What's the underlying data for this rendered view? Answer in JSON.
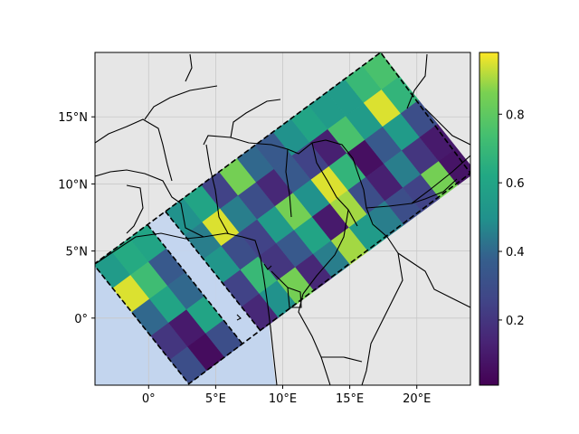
{
  "map": {
    "lon_range": [
      -4,
      24
    ],
    "lat_range": [
      -5,
      19.8
    ],
    "background_color": "#e6e6e6",
    "ocean_color": "#c3d5ee",
    "grid": true,
    "x_ticks": [
      {
        "lon": 0,
        "label": "0°"
      },
      {
        "lon": 5,
        "label": "5°E"
      },
      {
        "lon": 10,
        "label": "10°E"
      },
      {
        "lon": 15,
        "label": "15°E"
      },
      {
        "lon": 20,
        "label": "20°E"
      }
    ],
    "y_ticks": [
      {
        "lat": 0,
        "label": "0°"
      },
      {
        "lat": 5,
        "label": "5°N"
      },
      {
        "lat": 10,
        "label": "10°N"
      },
      {
        "lat": 15,
        "label": "15°N"
      }
    ]
  },
  "swath": {
    "corner_lon_lat": [
      [
        -4.1,
        4.0
      ],
      [
        17.3,
        19.8
      ],
      [
        24.0,
        10.8
      ],
      [
        3.0,
        -4.9
      ]
    ],
    "rows": 5,
    "cols": 16,
    "values": [
      [
        0.55,
        0.63,
        0.6,
        0.34,
        0.5,
        0.6,
        0.25,
        0.85,
        0.4,
        0.35,
        0.5,
        0.6,
        0.55,
        0.55,
        0.7,
        0.75
      ],
      [
        0.95,
        0.72,
        0.35,
        0.2,
        0.45,
        0.95,
        0.45,
        0.3,
        0.15,
        0.35,
        0.25,
        0.12,
        0.75,
        0.55,
        0.95,
        0.68
      ],
      [
        0.4,
        0.6,
        0.4,
        0.2,
        0.52,
        0.3,
        0.25,
        0.55,
        0.85,
        0.5,
        0.95,
        0.68,
        0.06,
        0.35,
        0.55,
        0.3
      ],
      [
        0.2,
        0.1,
        0.6,
        0.62,
        0.25,
        0.7,
        0.2,
        0.35,
        0.6,
        0.1,
        0.9,
        0.3,
        0.12,
        0.45,
        0.2,
        0.1
      ],
      [
        0.3,
        0.05,
        0.3,
        0.6,
        0.15,
        0.5,
        0.85,
        0.15,
        0.45,
        0.9,
        0.55,
        0.45,
        0.3,
        0.25,
        0.85,
        0.08
      ]
    ],
    "gap_column": 3,
    "outline_style": "dashed"
  },
  "colorbar": {
    "colormap": "viridis",
    "range": [
      0.01,
      0.98
    ],
    "ticks": [
      {
        "value": 0.2,
        "label": "0.2"
      },
      {
        "value": 0.4,
        "label": "0.4"
      },
      {
        "value": 0.6,
        "label": "0.6"
      },
      {
        "value": 0.8,
        "label": "0.8"
      }
    ]
  }
}
